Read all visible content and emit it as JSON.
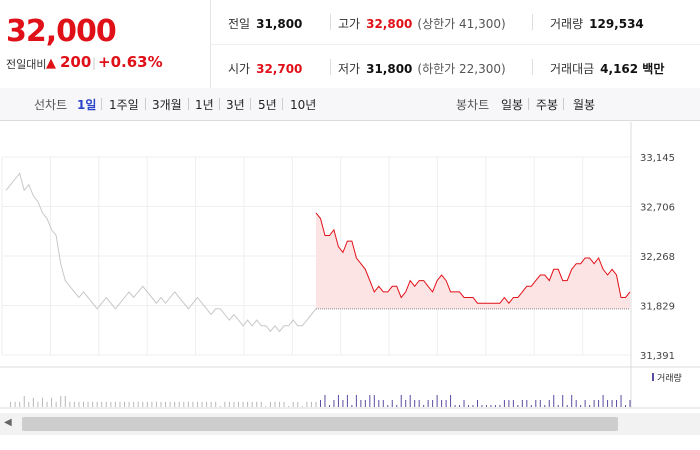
{
  "quote": {
    "price": "32,000",
    "change_label": "전일대비",
    "change_arrow": "▲",
    "change_amount": "200",
    "change_pct": "+0.63%",
    "stats": {
      "prev_close": {
        "label": "전일",
        "value": "31,800"
      },
      "high": {
        "label": "고가",
        "value": "32,800",
        "sub": "(상한가 41,300)"
      },
      "volume": {
        "label": "거래량",
        "value": "129,534"
      },
      "open": {
        "label": "시가",
        "value": "32,700"
      },
      "low": {
        "label": "저가",
        "value": "31,800",
        "sub": "(하한가 22,300)"
      },
      "trade_value": {
        "label": "거래대금",
        "value": "4,162 백만"
      }
    }
  },
  "toolbar": {
    "line_label": "선차트",
    "line_periods": [
      "1일",
      "1주일",
      "3개월",
      "1년",
      "3년",
      "5년",
      "10년"
    ],
    "active_period": "1일",
    "candle_label": "봉차트",
    "candle_periods": [
      "일봉",
      "주봉",
      "월봉"
    ]
  },
  "colors": {
    "up": "#e01018",
    "prev_day_line": "#c8c8c8",
    "volume_today": "#5b4aa0",
    "volume_prev": "#b8b8b8",
    "active": "#2b45c8"
  },
  "chart_data": {
    "type": "line",
    "y_ticks": [
      "33,145",
      "32,706",
      "32,268",
      "31,829",
      "31,391"
    ],
    "ylim": [
      31391,
      33145
    ],
    "reference_line": 31800,
    "volume_label": "거래량",
    "series": [
      {
        "values": [
          32850,
          32900,
          32950,
          33000,
          32850,
          32900,
          32800,
          32750,
          32650,
          32600,
          32500,
          32450,
          32200,
          32050,
          32000,
          31950,
          31900,
          31950,
          31900,
          31850,
          31800,
          31850,
          31900,
          31850,
          31800,
          31850,
          31900,
          31950,
          31900,
          31950,
          32000,
          31950,
          31900,
          31850,
          31900,
          31850,
          31900,
          31950,
          31900,
          31850,
          31800,
          31850,
          31900,
          31850,
          31800,
          31750,
          31800,
          31800,
          31750,
          31700,
          31750,
          31700,
          31650,
          31700,
          31650,
          31700,
          31650,
          31650,
          31600,
          31650,
          31600,
          31650,
          31650,
          31700,
          31650,
          31650,
          31700,
          31750,
          31800
        ]
      },
      {
        "values": [
          32650,
          32600,
          32450,
          32450,
          32500,
          32350,
          32300,
          32400,
          32400,
          32250,
          32200,
          32150,
          32050,
          31950,
          32000,
          31950,
          31950,
          32000,
          32000,
          31900,
          31950,
          32050,
          32000,
          32050,
          32050,
          32000,
          31950,
          32050,
          32100,
          32050,
          31950,
          31950,
          31950,
          31900,
          31900,
          31900,
          31850,
          31850,
          31850,
          31850,
          31850,
          31850,
          31900,
          31850,
          31900,
          31900,
          31950,
          32000,
          32000,
          32050,
          32100,
          32100,
          32050,
          32150,
          32150,
          32050,
          32050,
          32150,
          32200,
          32200,
          32250,
          32250,
          32200,
          32250,
          32150,
          32100,
          32150,
          32100,
          31900,
          31900,
          31950
        ]
      }
    ]
  }
}
